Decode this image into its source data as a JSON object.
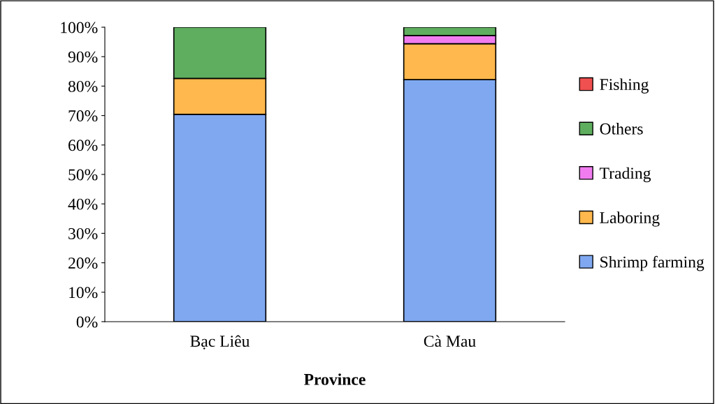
{
  "chart_data": {
    "type": "bar",
    "stacked": true,
    "xlabel": "Province",
    "categories": [
      "Bạc Liêu",
      "Cà Mau"
    ],
    "series": [
      {
        "name": "Shrimp farming",
        "color": "#7fa8f0",
        "values": [
          70.4,
          82.2
        ]
      },
      {
        "name": "Laboring",
        "color": "#ffb84d",
        "values": [
          12.2,
          12.2
        ]
      },
      {
        "name": "Trading",
        "color": "#f07cf0",
        "values": [
          0,
          2.8
        ]
      },
      {
        "name": "Others",
        "color": "#5fae5f",
        "values": [
          17.4,
          2.8
        ]
      },
      {
        "name": "Fishing",
        "color": "#f05050",
        "values": [
          0,
          0
        ]
      }
    ],
    "ylim": [
      0,
      100
    ],
    "yticks": [
      {
        "value": 0,
        "label": "0%"
      },
      {
        "value": 10,
        "label": "10%"
      },
      {
        "value": 20,
        "label": "20%"
      },
      {
        "value": 30,
        "label": "30%"
      },
      {
        "value": 40,
        "label": "40%"
      },
      {
        "value": 50,
        "label": "50%"
      },
      {
        "value": 60,
        "label": "60%"
      },
      {
        "value": 70,
        "label": "70%"
      },
      {
        "value": 80,
        "label": "80%"
      },
      {
        "value": 90,
        "label": "90%"
      },
      {
        "value": 100,
        "label": "100%"
      }
    ],
    "grid": false,
    "legend": "right"
  }
}
